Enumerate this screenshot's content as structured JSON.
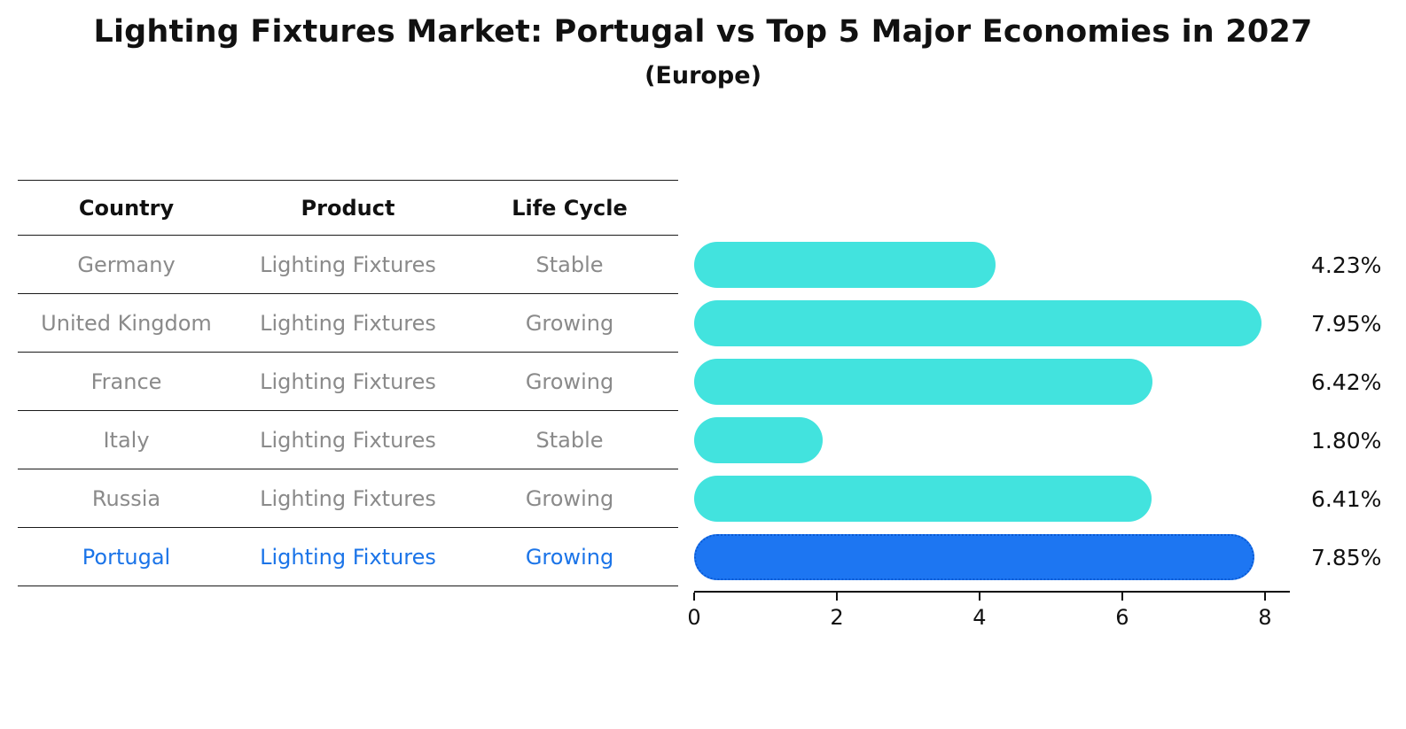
{
  "title": "Lighting Fixtures Market: Portugal vs Top 5 Major Economies in 2027",
  "subtitle": "(Europe)",
  "table": {
    "headers": [
      "Country",
      "Product",
      "Life Cycle"
    ],
    "rows": [
      {
        "country": "Germany",
        "product": "Lighting Fixtures",
        "life_cycle": "Stable",
        "value": 4.23,
        "value_label": "4.23%",
        "highlight": false
      },
      {
        "country": "United Kingdom",
        "product": "Lighting Fixtures",
        "life_cycle": "Growing",
        "value": 7.95,
        "value_label": "7.95%",
        "highlight": false
      },
      {
        "country": "France",
        "product": "Lighting Fixtures",
        "life_cycle": "Growing",
        "value": 6.42,
        "value_label": "6.42%",
        "highlight": false
      },
      {
        "country": "Italy",
        "product": "Lighting Fixtures",
        "life_cycle": "Stable",
        "value": 1.8,
        "value_label": "1.80%",
        "highlight": false
      },
      {
        "country": "Russia",
        "product": "Lighting Fixtures",
        "life_cycle": "Growing",
        "value": 6.41,
        "value_label": "6.41%",
        "highlight": false
      },
      {
        "country": "Portugal",
        "product": "Lighting Fixtures",
        "life_cycle": "Growing",
        "value": 7.85,
        "value_label": "7.85%",
        "highlight": true
      }
    ]
  },
  "chart_data": {
    "type": "bar",
    "orientation": "horizontal",
    "title": "Lighting Fixtures Market: Portugal vs Top 5 Major Economies in 2027",
    "subtitle": "(Europe)",
    "categories": [
      "Germany",
      "United Kingdom",
      "France",
      "Italy",
      "Russia",
      "Portugal"
    ],
    "values": [
      4.23,
      7.95,
      6.42,
      1.8,
      6.41,
      7.85
    ],
    "value_labels": [
      "4.23%",
      "7.95%",
      "6.42%",
      "1.80%",
      "6.41%",
      "7.85%"
    ],
    "xlabel": "",
    "ylabel": "",
    "xlim": [
      0,
      8.35
    ],
    "xticks": [
      0,
      2,
      4,
      6,
      8
    ],
    "grid": false,
    "legend": "none",
    "bar_color": "#42E3DE",
    "highlight_color": "#1D76F2",
    "highlight_border_color": "#0A5AD4",
    "highlight_text_color": "#1B74E8",
    "highlight_index": 5
  }
}
